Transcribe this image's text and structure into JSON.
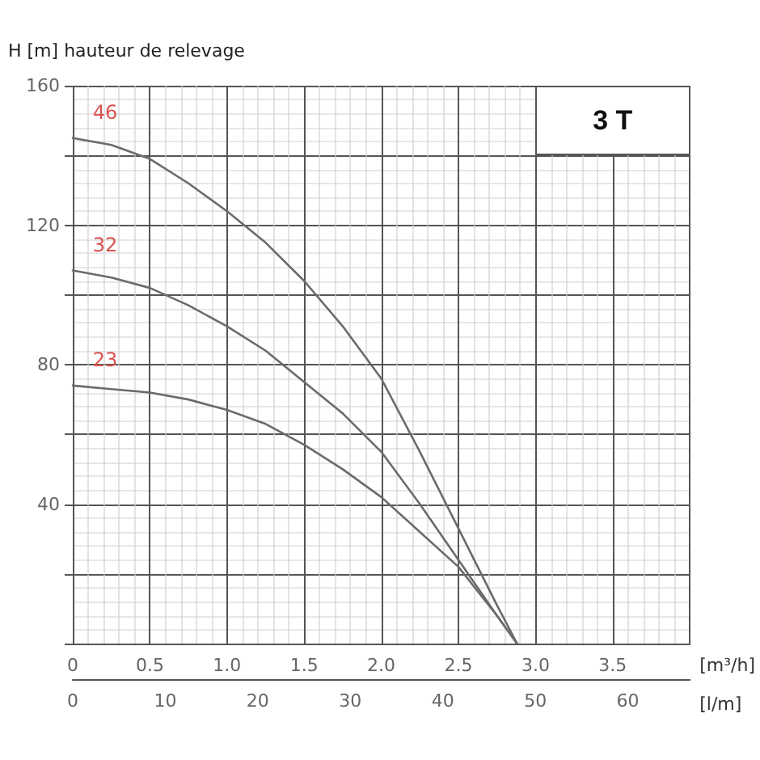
{
  "chart_data": {
    "type": "line",
    "ylabel": "H [m] hauteur de relevage",
    "xlabel": "[m³/h]",
    "x2label": "[l/m]",
    "annotations": [
      "3 T"
    ],
    "series": [
      {
        "name": "46",
        "color": "#6b6b6b",
        "x": [
          0,
          0.25,
          0.5,
          0.75,
          1.0,
          1.25,
          1.5,
          1.75,
          2.0,
          2.25,
          2.5,
          2.75,
          2.88
        ],
        "values": [
          145,
          143,
          139,
          132,
          124,
          115,
          104,
          91,
          76,
          55,
          33,
          11,
          0
        ]
      },
      {
        "name": "32",
        "color": "#6b6b6b",
        "x": [
          0,
          0.25,
          0.5,
          0.75,
          1.0,
          1.25,
          1.5,
          1.75,
          2.0,
          2.25,
          2.5,
          2.75,
          2.88
        ],
        "values": [
          107,
          105,
          102,
          97,
          91,
          84,
          75,
          66,
          55,
          40,
          24,
          8,
          0
        ]
      },
      {
        "name": "23",
        "color": "#6b6b6b",
        "x": [
          0,
          0.25,
          0.5,
          0.75,
          1.0,
          1.25,
          1.5,
          1.75,
          2.0,
          2.25,
          2.5,
          2.75,
          2.88
        ],
        "values": [
          74,
          73,
          72,
          70,
          67,
          63,
          57,
          50,
          42,
          32,
          22,
          8,
          0
        ]
      }
    ],
    "xlim": [
      0,
      4
    ],
    "xticks": [
      0,
      0.5,
      {
        "value": 1,
        "label": "1.0"
      },
      1.5,
      {
        "value": 2,
        "label": "2.0"
      },
      2.5,
      {
        "value": 3,
        "label": "3.0"
      },
      3.5,
      {
        "value": 4,
        "label": null
      }
    ],
    "x2lim": [
      0,
      66.7
    ],
    "x2ticks": [
      0,
      10,
      20,
      30,
      40,
      50,
      60
    ],
    "ylim": [
      0,
      160
    ],
    "yticks": [
      {
        "value": 0,
        "label": null
      },
      {
        "value": 20,
        "label": null
      },
      40,
      {
        "value": 60,
        "label": null
      },
      80,
      {
        "value": 100,
        "label": null
      },
      120,
      {
        "value": 140,
        "label": null
      },
      160
    ],
    "grid": true,
    "legend": false,
    "marker": "none",
    "line_style": "solid"
  }
}
